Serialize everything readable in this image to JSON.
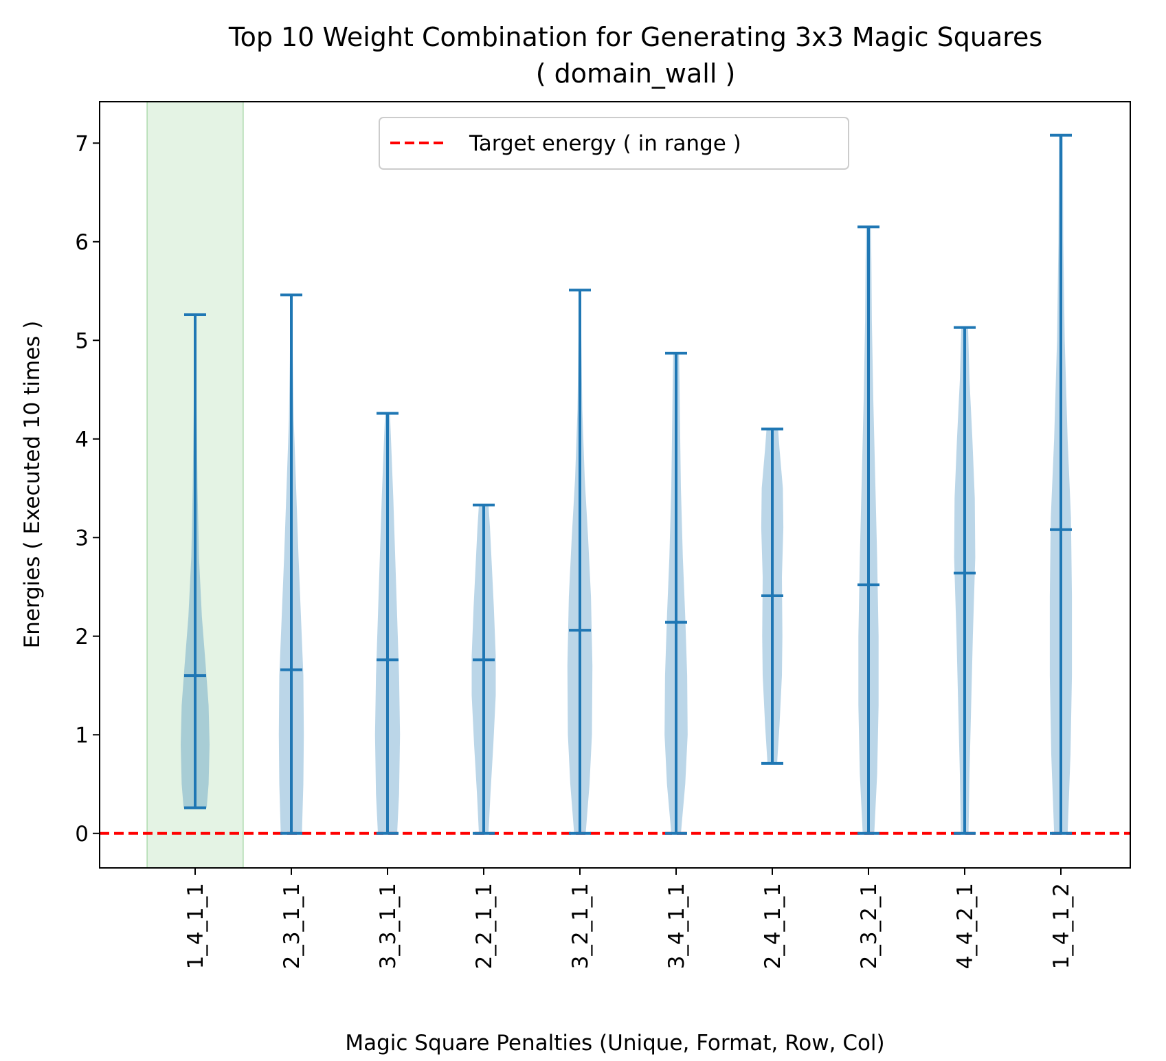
{
  "chart_data": {
    "type": "violin",
    "title": "Top 10 Weight Combination for Generating 3x3 Magic Squares",
    "subtitle": "( domain_wall )",
    "xlabel": "Magic Square Penalties (Unique, Format, Row, Col)",
    "ylabel": "Energies ( Executed 10 times )",
    "ylim": [
      -0.35,
      7.42
    ],
    "yticks": [
      0,
      1,
      2,
      3,
      4,
      5,
      6,
      7
    ],
    "categories": [
      "1_4_1_1",
      "2_3_1_1",
      "3_3_1_1",
      "2_2_1_1",
      "3_2_1_1",
      "3_4_1_1",
      "2_4_1_1",
      "2_3_2_1",
      "4_4_2_1",
      "1_4_1_2"
    ],
    "highlighted_category": "1_4_1_1",
    "target_energy": 0,
    "legend": {
      "label": "Target energy ( in range )",
      "placement": "upper center"
    },
    "series": [
      {
        "category": "1_4_1_1",
        "min": 0.26,
        "mean": 1.6,
        "max": 5.26,
        "profile": [
          [
            0.26,
            0.24
          ],
          [
            0.5,
            0.28
          ],
          [
            0.9,
            0.3
          ],
          [
            1.3,
            0.28
          ],
          [
            1.7,
            0.22
          ],
          [
            2.2,
            0.14
          ],
          [
            2.8,
            0.08
          ],
          [
            3.5,
            0.05
          ],
          [
            4.3,
            0.03
          ],
          [
            5.26,
            0.02
          ]
        ]
      },
      {
        "category": "2_3_1_1",
        "min": 0.0,
        "mean": 1.66,
        "max": 5.46,
        "profile": [
          [
            0.0,
            0.22
          ],
          [
            0.5,
            0.25
          ],
          [
            1.0,
            0.26
          ],
          [
            1.6,
            0.25
          ],
          [
            2.2,
            0.2
          ],
          [
            2.8,
            0.15
          ],
          [
            3.5,
            0.1
          ],
          [
            4.2,
            0.05
          ],
          [
            4.8,
            0.03
          ],
          [
            5.46,
            0.02
          ]
        ]
      },
      {
        "category": "3_3_1_1",
        "min": 0.0,
        "mean": 1.76,
        "max": 4.26,
        "profile": [
          [
            0.0,
            0.2
          ],
          [
            0.4,
            0.24
          ],
          [
            1.0,
            0.26
          ],
          [
            1.6,
            0.24
          ],
          [
            2.2,
            0.2
          ],
          [
            2.8,
            0.16
          ],
          [
            3.4,
            0.12
          ],
          [
            3.9,
            0.08
          ],
          [
            4.26,
            0.05
          ]
        ]
      },
      {
        "category": "2_2_1_1",
        "min": 0.0,
        "mean": 1.76,
        "max": 3.33,
        "profile": [
          [
            0.0,
            0.1
          ],
          [
            0.4,
            0.14
          ],
          [
            0.9,
            0.2
          ],
          [
            1.4,
            0.25
          ],
          [
            1.8,
            0.25
          ],
          [
            2.3,
            0.21
          ],
          [
            2.8,
            0.16
          ],
          [
            3.1,
            0.13
          ],
          [
            3.33,
            0.1
          ]
        ]
      },
      {
        "category": "3_2_1_1",
        "min": 0.0,
        "mean": 2.06,
        "max": 5.51,
        "profile": [
          [
            0.0,
            0.12
          ],
          [
            0.5,
            0.2
          ],
          [
            1.0,
            0.25
          ],
          [
            1.7,
            0.26
          ],
          [
            2.4,
            0.23
          ],
          [
            3.0,
            0.17
          ],
          [
            3.6,
            0.1
          ],
          [
            4.3,
            0.05
          ],
          [
            5.0,
            0.03
          ],
          [
            5.51,
            0.02
          ]
        ]
      },
      {
        "category": "3_4_1_1",
        "min": 0.0,
        "mean": 2.14,
        "max": 4.87,
        "profile": [
          [
            0.0,
            0.1
          ],
          [
            0.5,
            0.19
          ],
          [
            1.0,
            0.24
          ],
          [
            1.6,
            0.23
          ],
          [
            2.2,
            0.19
          ],
          [
            2.8,
            0.14
          ],
          [
            3.5,
            0.1
          ],
          [
            4.2,
            0.08
          ],
          [
            4.6,
            0.07
          ],
          [
            4.87,
            0.06
          ]
        ]
      },
      {
        "category": "2_4_1_1",
        "min": 0.71,
        "mean": 2.41,
        "max": 4.1,
        "profile": [
          [
            0.71,
            0.1
          ],
          [
            1.1,
            0.15
          ],
          [
            1.6,
            0.2
          ],
          [
            2.0,
            0.21
          ],
          [
            2.6,
            0.2
          ],
          [
            3.1,
            0.23
          ],
          [
            3.5,
            0.22
          ],
          [
            3.9,
            0.15
          ],
          [
            4.1,
            0.12
          ]
        ]
      },
      {
        "category": "2_3_2_1",
        "min": 0.0,
        "mean": 2.52,
        "max": 6.15,
        "profile": [
          [
            0.0,
            0.12
          ],
          [
            0.6,
            0.18
          ],
          [
            1.3,
            0.21
          ],
          [
            2.0,
            0.21
          ],
          [
            2.8,
            0.18
          ],
          [
            3.6,
            0.14
          ],
          [
            4.4,
            0.1
          ],
          [
            5.2,
            0.07
          ],
          [
            5.8,
            0.06
          ],
          [
            6.15,
            0.05
          ]
        ]
      },
      {
        "category": "4_4_2_1",
        "min": 0.0,
        "mean": 2.64,
        "max": 5.13,
        "profile": [
          [
            0.0,
            0.08
          ],
          [
            0.6,
            0.1
          ],
          [
            1.2,
            0.13
          ],
          [
            2.0,
            0.17
          ],
          [
            2.8,
            0.22
          ],
          [
            3.4,
            0.21
          ],
          [
            4.0,
            0.16
          ],
          [
            4.6,
            0.1
          ],
          [
            5.13,
            0.07
          ]
        ]
      },
      {
        "category": "1_4_1_2",
        "min": 0.0,
        "mean": 3.08,
        "max": 7.08,
        "profile": [
          [
            0.0,
            0.14
          ],
          [
            0.8,
            0.2
          ],
          [
            1.6,
            0.23
          ],
          [
            2.4,
            0.23
          ],
          [
            3.2,
            0.21
          ],
          [
            4.0,
            0.14
          ],
          [
            5.0,
            0.08
          ],
          [
            6.0,
            0.05
          ],
          [
            7.08,
            0.04
          ]
        ]
      }
    ],
    "colors": {
      "violin_body": "#1f77b4",
      "stat_lines": "#1f77b4",
      "target_line": "#ff0000",
      "highlight": "#2ca02c"
    }
  }
}
